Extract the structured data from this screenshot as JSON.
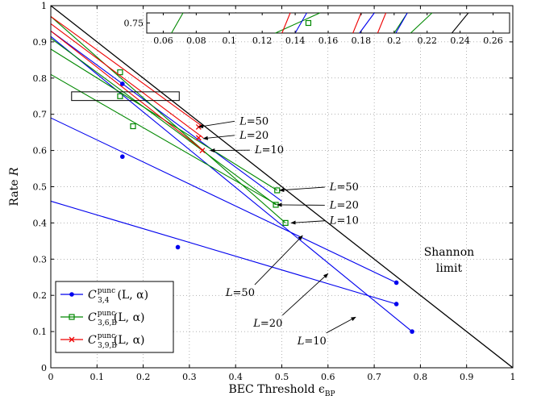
{
  "chart_data": {
    "type": "line",
    "xlabel": "BEC Threshold ϵ",
    "xlabel_sub": "BP",
    "ylabel": "Rate R",
    "xlim": [
      0,
      1
    ],
    "ylim": [
      0,
      1
    ],
    "xticks": [
      "0",
      "0.1",
      "0.2",
      "0.3",
      "0.4",
      "0.5",
      "0.6",
      "0.7",
      "0.8",
      "0.9",
      "1"
    ],
    "yticks": [
      "0",
      "0.1",
      "0.2",
      "0.3",
      "0.4",
      "0.5",
      "0.6",
      "0.7",
      "0.8",
      "0.9",
      "1"
    ],
    "grid": true,
    "legend_position": "bottom-left",
    "colors": {
      "blue": "#0000ee",
      "green": "#008800",
      "red": "#ee0000",
      "black": "#000000"
    },
    "shannon": {
      "label_line1": "Shannon",
      "label_line2": "limit",
      "x": [
        0,
        1
      ],
      "y": [
        1,
        0
      ]
    },
    "series": [
      {
        "name": "C_{3,4}^{punc}(L,α)",
        "legend_main": "C",
        "legend_sub": "3,4",
        "legend_sup": "punc",
        "legend_args": "(L, α)",
        "marker": "dot",
        "color": "#0000ee",
        "lines": [
          {
            "x": [
              0,
              0.748
            ],
            "y": [
              0.69,
              0.235
            ],
            "marked": [
              [
                0.155,
                0.583
              ],
              [
                0.748,
                0.235
              ]
            ]
          },
          {
            "x": [
              0,
              0.748
            ],
            "y": [
              0.46,
              0.176
            ],
            "marked": [
              [
                0.275,
                0.333
              ],
              [
                0.748,
                0.176
              ]
            ]
          },
          {
            "x": [
              0,
              0.782
            ],
            "y": [
              0.915,
              0.1
            ],
            "marked": [
              [
                0.155,
                0.784
              ],
              [
                0.782,
                0.1
              ]
            ]
          },
          {
            "x": [
              0,
              0.5
            ],
            "y": [
              0.93,
              0.46
            ],
            "marked": []
          }
        ]
      },
      {
        "name": "C_{3,6,B}^{punc}(L,α)",
        "legend_main": "C",
        "legend_sub": "3,6,B",
        "legend_sup": "punc",
        "legend_args": "(L, α)",
        "marker": "square",
        "color": "#008800",
        "lines": [
          {
            "x": [
              0,
              0.508
            ],
            "y": [
              0.97,
              0.4
            ],
            "marked": [
              [
                0.15,
                0.816
              ],
              [
                0.508,
                0.4
              ]
            ]
          },
          {
            "x": [
              0,
              0.487
            ],
            "y": [
              0.91,
              0.45
            ],
            "marked": [
              [
                0.15,
                0.75
              ],
              [
                0.487,
                0.45
              ]
            ]
          },
          {
            "x": [
              0,
              0.49
            ],
            "y": [
              0.88,
              0.49
            ],
            "marked": [
              [
                0.178,
                0.667
              ],
              [
                0.49,
                0.49
              ]
            ]
          },
          {
            "x": [
              0,
              0.49
            ],
            "y": [
              0.81,
              0.45
            ],
            "marked": []
          }
        ]
      },
      {
        "name": "C_{3,9,B}^{punc}(L,α)",
        "legend_main": "C",
        "legend_sub": "3,9,B",
        "legend_sup": "punc",
        "legend_args": "(L, α)",
        "marker": "cross",
        "color": "#ee0000",
        "lines": [
          {
            "x": [
              0,
              0.33
            ],
            "y": [
              0.97,
              0.665
            ],
            "marked": [
              [
                0.32,
                0.665
              ]
            ]
          },
          {
            "x": [
              0,
              0.33
            ],
            "y": [
              0.95,
              0.635
            ],
            "marked": [
              [
                0.32,
                0.635
              ]
            ]
          },
          {
            "x": [
              0,
              0.33
            ],
            "y": [
              0.93,
              0.6
            ],
            "marked": [
              [
                0.328,
                0.6
              ]
            ]
          }
        ]
      }
    ],
    "annotations_upper": [
      {
        "label": "L=50",
        "x": 0.32,
        "y": 0.665,
        "text_x": 0.405,
        "text_y": 0.672
      },
      {
        "label": "L=20",
        "x": 0.33,
        "y": 0.633,
        "text_x": 0.405,
        "text_y": 0.633
      },
      {
        "label": "L=10",
        "x": 0.345,
        "y": 0.6,
        "text_x": 0.438,
        "text_y": 0.592
      }
    ],
    "annotations_middle": [
      {
        "label": "L=50",
        "x": 0.495,
        "y": 0.49,
        "text_x": 0.6,
        "text_y": 0.49
      },
      {
        "label": "L=20",
        "x": 0.49,
        "y": 0.45,
        "text_x": 0.6,
        "text_y": 0.44
      },
      {
        "label": "L=10",
        "x": 0.52,
        "y": 0.4,
        "text_x": 0.6,
        "text_y": 0.397
      }
    ],
    "annotations_lower": [
      {
        "label": "L=50",
        "x": 0.545,
        "y": 0.365,
        "text_x": 0.41,
        "text_y": 0.198,
        "text_dx": -0.065,
        "text_dy": -0.05
      },
      {
        "label": "L=20",
        "x": 0.6,
        "y": 0.26,
        "text_x": 0.47,
        "text_y": 0.114,
        "text_dx": -0.03,
        "text_dy": -0.05
      },
      {
        "label": "L=10",
        "x": 0.66,
        "y": 0.14,
        "text_x": 0.565,
        "text_y": 0.065,
        "text_dx": -0.015,
        "text_dy": -0.05
      }
    ],
    "zoom_box": {
      "x": [
        0.045,
        0.278
      ],
      "y": [
        0.738,
        0.762
      ]
    },
    "inset": {
      "xlim": [
        0.05,
        0.27
      ],
      "xticks": [
        "0.06",
        "0.08",
        "0.1",
        "0.12",
        "0.14",
        "0.16",
        "0.18",
        "0.2",
        "0.22",
        "0.24",
        "0.26"
      ],
      "ytick": "0.75",
      "segments": [
        {
          "color": "#008800",
          "x": [
            0.065,
            0.072
          ]
        },
        {
          "color": "#008800",
          "x": [
            0.128,
            0.155
          ]
        },
        {
          "color": "#ee0000",
          "x": [
            0.132,
            0.137
          ]
        },
        {
          "color": "#0000ee",
          "x": [
            0.14,
            0.147
          ]
        },
        {
          "color": "#ee0000",
          "x": [
            0.175,
            0.18
          ]
        },
        {
          "color": "#0000ee",
          "x": [
            0.179,
            0.188
          ]
        },
        {
          "color": "#ee0000",
          "x": [
            0.19,
            0.195
          ]
        },
        {
          "color": "#008800",
          "x": [
            0.2,
            0.208
          ]
        },
        {
          "color": "#0000ee",
          "x": [
            0.201,
            0.208
          ]
        },
        {
          "color": "#008800",
          "x": [
            0.21,
            0.223
          ]
        },
        {
          "color": "#000000",
          "x": [
            0.235,
            0.245
          ]
        }
      ],
      "marker_x": 0.148
    }
  }
}
